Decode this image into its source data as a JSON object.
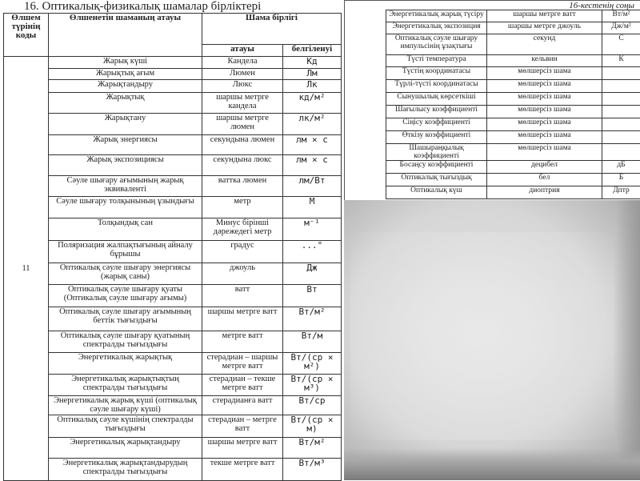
{
  "title": "16. Оптикалық-физикалық шамалар бірліктері",
  "continuation_label": "16-кестенің соңы",
  "left_table": {
    "headers": {
      "code": "Өлшем түрінің коды",
      "name": "Өлшенетін шаманың атауы",
      "unit": "Шама бірлігі",
      "unit_name": "атауы",
      "unit_symbol": "белгіленуі"
    },
    "code_value": "11",
    "rows": [
      {
        "name": "Жарық күші",
        "unit": "Кандела",
        "symbol": "Кд"
      },
      {
        "name": "Жарықтық ағым",
        "unit": "Люмен",
        "symbol": "Лм"
      },
      {
        "name": "Жарықтандыру",
        "unit": "Люкс",
        "symbol": "Лк"
      },
      {
        "name": "Жарықтық",
        "unit": "шаршы метрге кандела",
        "symbol": "кд/м²"
      },
      {
        "name": "Жарықтану",
        "unit": "шаршы метрге люмен",
        "symbol": "лк/м²"
      },
      {
        "name": "Жарық энергиясы",
        "unit": "секундына люмен",
        "symbol": "лм × с"
      },
      {
        "name": "Жарық экспозициясы",
        "unit": "секундына люкс",
        "symbol": "лм × с"
      },
      {
        "name": "Сәуле шығару ағымының жарық эквиваленті",
        "unit": "ваттка люмен",
        "symbol": "лм/Вт"
      },
      {
        "name": "Сәуле шығару толқынының ұзындығы",
        "unit": "метр",
        "symbol": "М"
      },
      {
        "name": "Толқындық сан",
        "unit": "Минус бірінші дәрежедегі метр",
        "symbol": "м⁻¹"
      },
      {
        "name": "Поляризация жалпақтығының айналу бұрышы",
        "unit": "градус",
        "symbol": "...°"
      },
      {
        "name": "Оптикалық сәуле шығару энергиясы (жарық саны)",
        "unit": "джоуль",
        "symbol": "Дж"
      },
      {
        "name": "Оптикалық сәуле шығару қуаты (Оптикалық сәуле шығару ағымы)",
        "unit": "ватт",
        "symbol": "Вт"
      },
      {
        "name": "Оптикалық сәуле шығару ағымының беттік тығыздығы",
        "unit": "шаршы метрге ватт",
        "symbol": "Вт/м²"
      },
      {
        "name": "Оптикалық сәуле шығару қуатының спектралды тығыздығы",
        "unit": "метрге ватт",
        "symbol": "Вт/м"
      },
      {
        "name": "Энергетикалық жарықтық",
        "unit": "стерадиан – шаршы метрге ватт",
        "symbol": "Вт/(ср × м²)"
      },
      {
        "name": "Энергетикалық жарықтықтың спектралды тығыздығы",
        "unit": "стерадиан – текше метрге ватт",
        "symbol": "Вт/(ср × м³)"
      },
      {
        "name": "Энергетикалық жарық күші (оптикалық сәуле шығару күші)",
        "unit": "стерадианға ватт",
        "symbol": "Вт/ср"
      },
      {
        "name": "Оптикалық сәуле күшінің спектралды тығыздығы",
        "unit": "стерадиан – метрге ватт",
        "symbol": "Вт/(ср × м)"
      },
      {
        "name": "Энергетикалық жарықтандыру",
        "unit": "шаршы метрге ватт",
        "symbol": "Вт/м²"
      },
      {
        "name": "Энергетикалық жарықтандырудың спектралды тығыздығы",
        "unit": "текше метрге ватт",
        "symbol": "Вт/м³"
      }
    ]
  },
  "right_table": {
    "rows": [
      {
        "name": "Энергетикалық жарық түсіру",
        "unit": "шаршы метрге ватт",
        "symbol": "Вт/м²"
      },
      {
        "name": "Энергетикалық экспозиция",
        "unit": "шаршы метрге джоуль",
        "symbol": "Дж/м²"
      },
      {
        "name": "Оптикалық сәуле шығару импульсінің ұзақтығы",
        "unit": "секунд",
        "symbol": "С"
      },
      {
        "name": "Түсті температура",
        "unit": "кельвин",
        "symbol": "К"
      },
      {
        "name": "Түстің координатасы",
        "unit": "мөлшерсіз шама",
        "symbol": ""
      },
      {
        "name": "Түрлі-түсті координатасы",
        "unit": "мөлшерсіз шама",
        "symbol": ""
      },
      {
        "name": "Сынушылық көрсеткіші",
        "unit": "мөлшерсіз шама",
        "symbol": ""
      },
      {
        "name": "Шағылысу коэффициенті",
        "unit": "мөлшерсіз шама",
        "symbol": ""
      },
      {
        "name": "Сіңісу коэффициенті",
        "unit": "мөлшерсіз шама",
        "symbol": ""
      },
      {
        "name": "Өткізу коэффициенті",
        "unit": "мөлшерсіз шама",
        "symbol": ""
      },
      {
        "name": "Шашыраңқылық коэффициенті",
        "unit": "мөлшерсіз шама",
        "symbol": ""
      },
      {
        "name": "Босаңсу коэффициенті",
        "unit": "децибел",
        "symbol": "дБ"
      },
      {
        "name": "Оптикалық тығыздық",
        "unit": "бел",
        "symbol": "Б"
      },
      {
        "name": "Оптикалық күш",
        "unit": "диоптрия",
        "symbol": "Дптр"
      }
    ]
  }
}
